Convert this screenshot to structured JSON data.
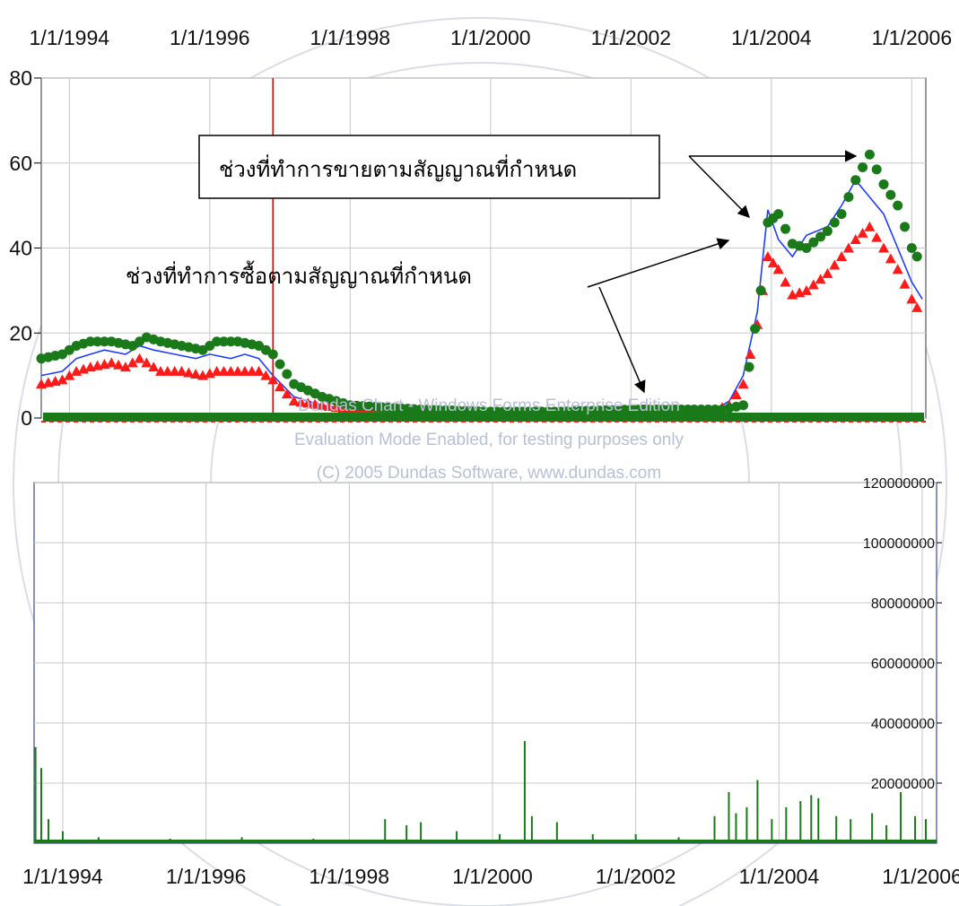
{
  "watermark": {
    "lines": [
      "Dundas Chart - Windows Forms Enterprise Edition",
      "Evaluation Mode Enabled, for testing purposes only",
      "(C) 2005 Dundas Software, www.dundas.com"
    ]
  },
  "annotations": {
    "sell_label": "ช่วงที่ทำการขายตามสัญญาณที่กำหนด",
    "buy_label": "ช่วงที่ทำการซื้อตามสัญญาณที่กำหนด"
  },
  "colors": {
    "blue_series": "#1f3cff",
    "red_series": "#ff1a1a",
    "green_series": "#1a7a1a",
    "grid": "#c8c8c8",
    "frame": "#555555",
    "signal_line": "#dd0000"
  },
  "chart_data": [
    {
      "type": "line",
      "x_tick_labels": [
        "1/1/1994",
        "1/1/1996",
        "1/1/1998",
        "1/1/2000",
        "1/1/2002",
        "1/1/2004",
        "1/1/2006"
      ],
      "y_tick_labels": [
        "0",
        "20",
        "40",
        "60",
        "80"
      ],
      "ylim": [
        0,
        80
      ],
      "xlim": [
        1993.6,
        2006.2
      ],
      "grid": true,
      "series": [
        {
          "color": "blue",
          "style": "line",
          "x": [
            1993.6,
            1993.9,
            1994.1,
            1994.3,
            1994.5,
            1994.8,
            1995.0,
            1995.2,
            1995.5,
            1995.8,
            1996.0,
            1996.3,
            1996.5,
            1996.7,
            1996.9,
            1997.2,
            1997.6,
            1998.0,
            1999.0,
            2000.0,
            2001.0,
            2002.0,
            2002.9,
            2003.2,
            2003.4,
            2003.6,
            2003.8,
            2003.95,
            2004.1,
            2004.3,
            2004.5,
            2004.8,
            2005.0,
            2005.2,
            2005.4,
            2005.6,
            2005.8,
            2006.0,
            2006.15
          ],
          "y": [
            10,
            11,
            14,
            15,
            16,
            15,
            17,
            16,
            15,
            14,
            15,
            14,
            15,
            14,
            10,
            5,
            3,
            2,
            1,
            1,
            1,
            1.5,
            1.5,
            2,
            4,
            10,
            25,
            49,
            42,
            38,
            43,
            45,
            50,
            56,
            52,
            48,
            40,
            32,
            28
          ]
        },
        {
          "color": "red",
          "style": "triangle-markers",
          "x": [
            1993.6,
            1993.9,
            1994.1,
            1994.3,
            1994.6,
            1994.8,
            1995.0,
            1995.3,
            1995.6,
            1995.9,
            1996.1,
            1996.4,
            1996.7,
            1996.9,
            1997.2,
            1997.6,
            1998.0,
            1999.0,
            2000.0,
            2001.0,
            2002.0,
            2002.9,
            2003.2,
            2003.4,
            2003.6,
            2003.8,
            2003.95,
            2004.1,
            2004.3,
            2004.5,
            2004.8,
            2005.0,
            2005.2,
            2005.4,
            2005.6,
            2005.8,
            2006.0,
            2006.15
          ],
          "y": [
            8,
            9,
            11,
            12,
            13,
            12,
            14,
            11,
            11,
            10,
            11,
            11,
            11,
            9,
            4,
            3,
            2,
            1,
            1,
            1,
            1,
            1.5,
            2,
            3,
            8,
            22,
            38,
            35,
            29,
            30,
            34,
            38,
            42,
            45,
            40,
            35,
            28,
            24
          ]
        },
        {
          "color": "green",
          "style": "circle-markers",
          "x": [
            1993.6,
            1993.9,
            1994.1,
            1994.3,
            1994.6,
            1994.9,
            1995.1,
            1995.3,
            1995.6,
            1995.9,
            1996.1,
            1996.4,
            1996.7,
            1996.9,
            1997.2,
            1997.6,
            1998.0,
            1999.0,
            2000.0,
            2001.0,
            2002.0,
            2002.9,
            2003.3,
            2003.6,
            2003.85,
            2003.95,
            2004.1,
            2004.3,
            2004.5,
            2004.8,
            2005.0,
            2005.2,
            2005.4,
            2005.6,
            2005.8,
            2006.0,
            2006.15
          ],
          "y": [
            14,
            15,
            17,
            18,
            18,
            17,
            19,
            18,
            17,
            16,
            18,
            18,
            17,
            15,
            8,
            5,
            3,
            2,
            1.5,
            1.5,
            2,
            2,
            2,
            3,
            30,
            46,
            48,
            41,
            40,
            44,
            48,
            56,
            62,
            55,
            50,
            40,
            36
          ]
        }
      ],
      "baseline_marker_value": 0,
      "signal_line_x": 1996.9
    },
    {
      "type": "bar",
      "x_tick_labels": [
        "1/1/1994",
        "1/1/1996",
        "1/1/1998",
        "1/1/2000",
        "1/1/2002",
        "1/1/2004",
        "1/1/2006"
      ],
      "y_tick_labels": [
        "120000000",
        "100000000",
        "80000000",
        "60000000",
        "40000000",
        "20000000"
      ],
      "ylim": [
        0,
        120000000
      ],
      "xlim": [
        1993.6,
        2006.2
      ],
      "grid": true,
      "color": "green",
      "x": [
        1993.62,
        1993.7,
        1993.8,
        1994.0,
        1994.5,
        1995.5,
        1996.5,
        1997.5,
        1998.5,
        1998.8,
        1999.0,
        1999.5,
        2000.1,
        2000.45,
        2000.55,
        2000.9,
        2001.4,
        2002.0,
        2002.6,
        2003.1,
        2003.3,
        2003.4,
        2003.55,
        2003.7,
        2003.9,
        2004.1,
        2004.3,
        2004.45,
        2004.55,
        2004.8,
        2005.0,
        2005.3,
        2005.5,
        2005.7,
        2005.9,
        2006.05
      ],
      "values": [
        32000000,
        25000000,
        8000000,
        4000000,
        2000000,
        1500000,
        2000000,
        1500000,
        8000000,
        6000000,
        7000000,
        4000000,
        3000000,
        34000000,
        9000000,
        7000000,
        3000000,
        3000000,
        2000000,
        9000000,
        17000000,
        10000000,
        12000000,
        21000000,
        8000000,
        12000000,
        14000000,
        16000000,
        15000000,
        9000000,
        8000000,
        10000000,
        6000000,
        17000000,
        9000000,
        8000000
      ]
    }
  ]
}
